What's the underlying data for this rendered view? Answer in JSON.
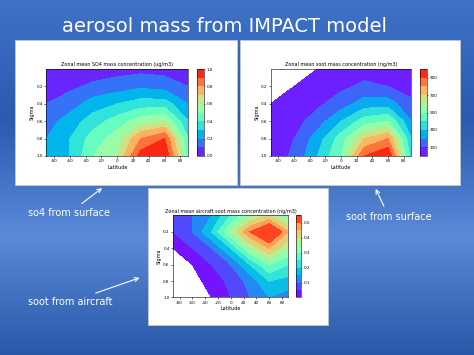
{
  "title": "aerosol mass from IMPACT model",
  "callouts": [
    "so4 from surface",
    "soot from surface",
    "soot from aircraft"
  ],
  "chart_data": [
    {
      "type": "contour",
      "title": "Zonal mean SO4 mass concentration (ug/m3)",
      "x_label": "Latitude",
      "y_label": "Sigma",
      "x": [
        -90,
        -60,
        -30,
        0,
        30,
        60,
        90
      ],
      "y": [
        0.0,
        0.2,
        0.4,
        0.6,
        0.8,
        1.0
      ],
      "z": [
        [
          0.02,
          0.03,
          0.05,
          0.06,
          0.07,
          0.06,
          0.04
        ],
        [
          0.05,
          0.08,
          0.12,
          0.15,
          0.18,
          0.16,
          0.1
        ],
        [
          0.1,
          0.15,
          0.25,
          0.3,
          0.35,
          0.35,
          0.2
        ],
        [
          0.15,
          0.25,
          0.35,
          0.45,
          0.55,
          0.6,
          0.3
        ],
        [
          0.2,
          0.3,
          0.45,
          0.55,
          0.8,
          0.9,
          0.4
        ],
        [
          0.2,
          0.3,
          0.5,
          0.6,
          0.95,
          1.0,
          0.45
        ]
      ],
      "xlim": [
        -90,
        90
      ],
      "xticks": [
        -80,
        -60,
        -40,
        -20,
        0,
        20,
        40,
        60,
        80
      ],
      "ylim": [
        1.0,
        0.0
      ],
      "yticks": [
        0.2,
        0.4,
        0.6,
        0.8,
        1.0
      ],
      "levels": [
        0.0,
        0.1,
        0.2,
        0.3,
        0.4,
        0.5,
        0.6,
        0.7,
        0.8,
        0.9,
        1.0
      ],
      "colorbar_ticks": [
        0.0,
        0.2,
        0.4,
        0.6,
        0.8,
        1.0
      ]
    },
    {
      "type": "contour",
      "title": "Zonal mean soot mass concentration (ng/m3)",
      "x_label": "Latitude",
      "y_label": "Sigma",
      "x": [
        -90,
        -60,
        -30,
        0,
        30,
        60,
        90
      ],
      "y": [
        0.0,
        0.2,
        0.4,
        0.6,
        0.8,
        1.0
      ],
      "z": [
        [
          5,
          10,
          20,
          40,
          60,
          50,
          30
        ],
        [
          10,
          20,
          40,
          80,
          120,
          100,
          60
        ],
        [
          20,
          40,
          80,
          150,
          250,
          250,
          120
        ],
        [
          30,
          60,
          150,
          300,
          450,
          500,
          200
        ],
        [
          40,
          100,
          250,
          450,
          700,
          800,
          300
        ],
        [
          40,
          120,
          300,
          500,
          900,
          1000,
          350
        ]
      ],
      "xlim": [
        -90,
        90
      ],
      "xticks": [
        -80,
        -60,
        -40,
        -20,
        0,
        20,
        40,
        60,
        80
      ],
      "ylim": [
        1.0,
        0.0
      ],
      "yticks": [
        0.2,
        0.4,
        0.6,
        0.8,
        1.0
      ],
      "levels": [
        20,
        100,
        200,
        300,
        400,
        500,
        600,
        700,
        800,
        900,
        1000
      ],
      "colorbar_ticks": [
        100,
        300,
        500,
        700,
        900
      ]
    },
    {
      "type": "contour",
      "title": "Zonal mean aircraft soot mass concentration (ng/m3)",
      "x_label": "Latitude",
      "y_label": "Sigma",
      "x": [
        -90,
        -60,
        -30,
        0,
        30,
        60,
        90
      ],
      "y": [
        0.0,
        0.2,
        0.4,
        0.6,
        0.8,
        1.0
      ],
      "z": [
        [
          0.05,
          0.1,
          0.15,
          0.25,
          0.35,
          0.4,
          0.3
        ],
        [
          0.05,
          0.1,
          0.2,
          0.35,
          0.5,
          0.6,
          0.45
        ],
        [
          0.02,
          0.05,
          0.1,
          0.2,
          0.35,
          0.45,
          0.35
        ],
        [
          0.005,
          0.02,
          0.05,
          0.1,
          0.2,
          0.3,
          0.25
        ],
        [
          0.0,
          0.01,
          0.03,
          0.06,
          0.12,
          0.2,
          0.18
        ],
        [
          0.0,
          0.005,
          0.02,
          0.05,
          0.1,
          0.15,
          0.12
        ]
      ],
      "xlim": [
        -90,
        90
      ],
      "xticks": [
        -80,
        -60,
        -40,
        -20,
        0,
        20,
        40,
        60,
        80
      ],
      "ylim": [
        1.0,
        0.0
      ],
      "yticks": [
        0.2,
        0.4,
        0.6,
        0.8,
        1.0
      ],
      "levels": [
        0.02,
        0.05,
        0.1,
        0.15,
        0.2,
        0.25,
        0.3,
        0.35,
        0.4,
        0.45,
        0.5,
        0.6
      ],
      "colorbar_ticks": [
        0.1,
        0.2,
        0.3,
        0.4,
        0.5
      ]
    }
  ]
}
